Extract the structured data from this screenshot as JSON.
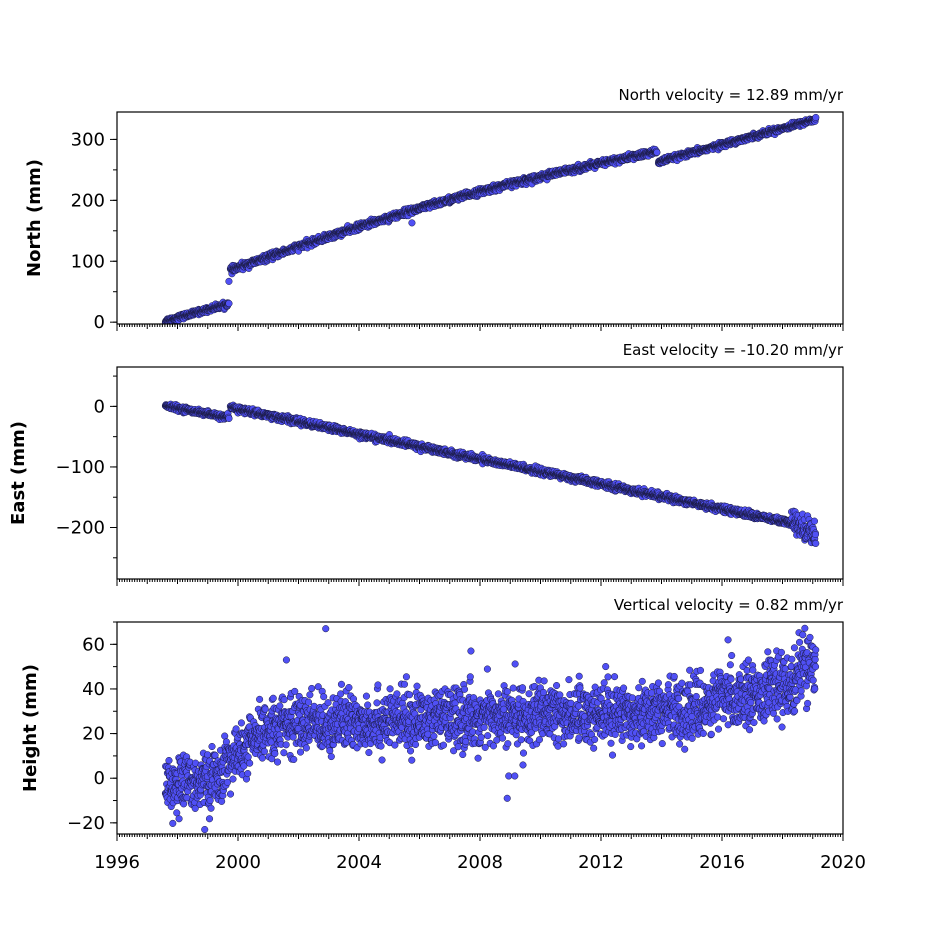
{
  "figure": {
    "marker_color": "#5050f5",
    "marker_edge_color": "#1a1a40",
    "xlabel": "",
    "x_ticks": [
      1996,
      2000,
      2004,
      2008,
      2012,
      2016,
      2020
    ]
  },
  "chart_data": [
    {
      "type": "scatter",
      "title": "North velocity = 12.89 mm/yr",
      "ylabel": "North (mm)",
      "xlim": [
        1996,
        2020
      ],
      "ylim": [
        -3,
        345
      ],
      "y_ticks": [
        0,
        100,
        200,
        300
      ],
      "series": [
        {
          "segments": [
            {
              "x0": 1997.6,
              "y0": 2,
              "x1": 1999.7,
              "y1": 30,
              "noise": 2
            },
            {
              "x0": 1999.75,
              "y0": 85,
              "x1": 2013.85,
              "y1": 280,
              "noise": 2.5,
              "curve": 0.08
            },
            {
              "x0": 2013.9,
              "y0": 263,
              "x1": 2019.1,
              "y1": 333,
              "noise": 2
            }
          ],
          "outliers": [
            [
              1999.7,
              67
            ],
            [
              2005.75,
              163
            ]
          ]
        }
      ]
    },
    {
      "type": "scatter",
      "title": "East velocity = -10.20 mm/yr",
      "ylabel": "East (mm)",
      "xlim": [
        1996,
        2020
      ],
      "ylim": [
        -285,
        65
      ],
      "y_ticks": [
        0,
        -100,
        -200
      ],
      "y_tick_labels": [
        "0",
        "−100",
        "−200"
      ],
      "series": [
        {
          "segments": [
            {
              "x0": 1997.6,
              "y0": 1,
              "x1": 1999.7,
              "y1": -19,
              "noise": 2
            },
            {
              "x0": 1999.75,
              "y0": -2,
              "x1": 2018.3,
              "y1": -193,
              "noise": 2.5
            },
            {
              "x0": 2018.3,
              "y0": -190,
              "x1": 2019.1,
              "y1": -210,
              "noise": 10
            }
          ],
          "outliers": []
        }
      ]
    },
    {
      "type": "scatter",
      "title": "Vertical velocity = 0.82 mm/yr",
      "ylabel": "Height (mm)",
      "xlim": [
        1996,
        2020
      ],
      "ylim": [
        -25,
        70
      ],
      "y_ticks": [
        -20,
        0,
        20,
        40,
        60
      ],
      "y_tick_labels": [
        "−20",
        "0",
        "20",
        "40",
        "60"
      ],
      "series": [
        {
          "segments": [
            {
              "x0": 1997.6,
              "y0": -3,
              "x1": 1999.5,
              "y1": 0,
              "noise": 6
            },
            {
              "x0": 1999.5,
              "y0": 5,
              "x1": 2001.2,
              "y1": 24,
              "noise": 6
            },
            {
              "x0": 2001.2,
              "y0": 24,
              "x1": 2015.5,
              "y1": 31,
              "noise": 6.5
            },
            {
              "x0": 2015.5,
              "y0": 34,
              "x1": 2018.3,
              "y1": 42,
              "noise": 6.5
            },
            {
              "x0": 2018.3,
              "y0": 44,
              "x1": 2019.1,
              "y1": 52,
              "noise": 8
            }
          ],
          "outliers": [
            [
              2002.9,
              67
            ],
            [
              2008.9,
              -9
            ],
            [
              2008.95,
              1
            ],
            [
              2009.15,
              1
            ],
            [
              1998.9,
              -23
            ],
            [
              2007.7,
              57
            ],
            [
              2016.2,
              62
            ],
            [
              2001.6,
              53
            ]
          ]
        }
      ]
    }
  ]
}
